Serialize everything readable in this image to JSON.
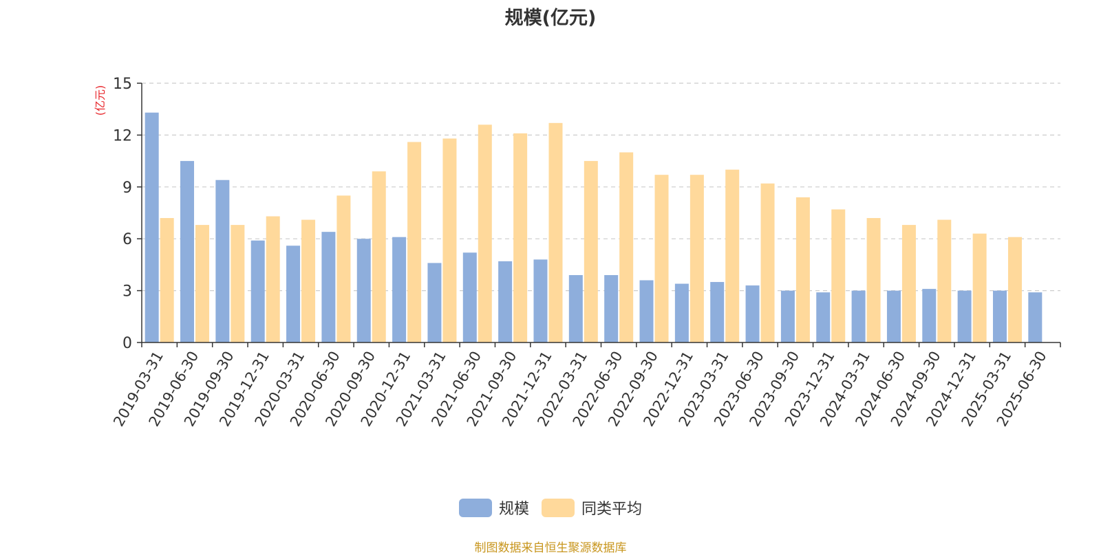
{
  "chart_data": {
    "type": "bar",
    "title": "规模(亿元)",
    "ylabel": "(亿元)",
    "xlabel": "",
    "ylim": [
      0,
      15
    ],
    "yticks": [
      0,
      3,
      6,
      9,
      12,
      15
    ],
    "grid": true,
    "legend_position": "bottom-center",
    "categories": [
      "2019-03-31",
      "2019-06-30",
      "2019-09-30",
      "2019-12-31",
      "2020-03-31",
      "2020-06-30",
      "2020-09-30",
      "2020-12-31",
      "2021-03-31",
      "2021-06-30",
      "2021-09-30",
      "2021-12-31",
      "2022-03-31",
      "2022-06-30",
      "2022-09-30",
      "2022-12-31",
      "2023-03-31",
      "2023-06-30",
      "2023-09-30",
      "2023-12-31",
      "2024-03-31",
      "2024-06-30",
      "2024-09-30",
      "2024-12-31",
      "2025-03-31",
      "2025-06-30"
    ],
    "series": [
      {
        "name": "规模",
        "color": "#8eaedc",
        "values": [
          13.3,
          10.5,
          9.4,
          5.9,
          5.6,
          6.4,
          6.0,
          6.1,
          4.6,
          5.2,
          4.7,
          4.8,
          3.9,
          3.9,
          3.6,
          3.4,
          3.5,
          3.3,
          3.0,
          2.9,
          3.0,
          3.0,
          3.1,
          3.0,
          3.0,
          2.9
        ]
      },
      {
        "name": "同类平均",
        "color": "#ffd99b",
        "values": [
          7.2,
          6.8,
          6.8,
          7.3,
          7.1,
          8.5,
          9.9,
          11.6,
          11.8,
          12.6,
          12.1,
          12.7,
          10.5,
          11.0,
          9.7,
          9.7,
          10.0,
          9.2,
          8.4,
          7.7,
          7.2,
          6.8,
          7.1,
          6.3,
          6.1,
          null
        ]
      }
    ]
  },
  "source_note": "制图数据来自恒生聚源数据库"
}
